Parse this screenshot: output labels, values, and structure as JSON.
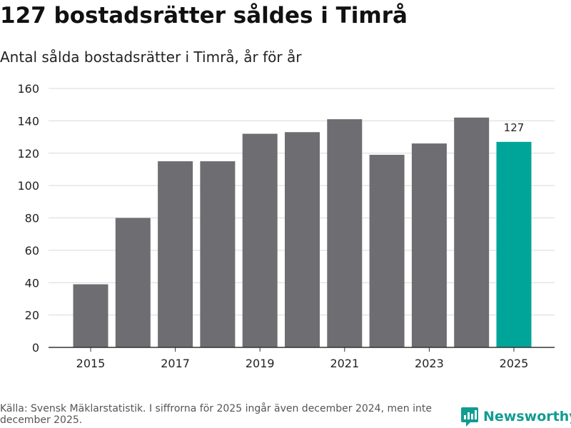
{
  "header": {
    "title": "127 bostadsrätter såldes i Timrå",
    "subtitle": "Antal sålda bostadsrätter i Timrå, år för år"
  },
  "chart_data": {
    "type": "bar",
    "title": "127 bostadsrätter såldes i Timrå",
    "subtitle": "Antal sålda bostadsrätter i Timrå, år för år",
    "xlabel": "",
    "ylabel": "",
    "categories": [
      "2015",
      "2016",
      "2017",
      "2018",
      "2019",
      "2020",
      "2021",
      "2022",
      "2023",
      "2024",
      "2025"
    ],
    "values": [
      39,
      80,
      115,
      115,
      132,
      133,
      141,
      119,
      126,
      142,
      127
    ],
    "x_tick_labels": [
      "2015",
      "2017",
      "2019",
      "2021",
      "2023",
      "2025"
    ],
    "y_ticks": [
      0,
      20,
      40,
      60,
      80,
      100,
      120,
      140,
      160
    ],
    "ylim": [
      0,
      160
    ],
    "grid": true,
    "highlight_index": 10,
    "annotations": [
      {
        "category": "2025",
        "text": "127"
      }
    ],
    "colors": {
      "bar": "#6d6d72",
      "highlight": "#00a59a",
      "grid": "#d9d9d9",
      "axis": "#333333"
    }
  },
  "footer": {
    "source": "Källa: Svensk Mäklarstatistik. I siffrorna för 2025 ingår även december 2024, men inte december 2025."
  },
  "brand": {
    "name": "Newsworthy",
    "icon": "newsworthy-logo-icon",
    "color": "#119c92"
  }
}
